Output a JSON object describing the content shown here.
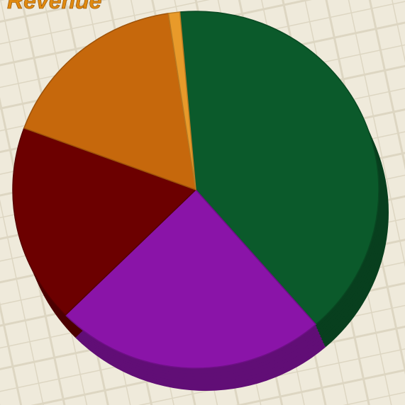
{
  "chart_data": {
    "type": "pie",
    "title": "Revenue",
    "categories": [
      null,
      null,
      null,
      null,
      null
    ],
    "values": [
      40,
      24,
      18,
      17,
      1
    ],
    "colors": [
      "#0b5a2b",
      "#8a14a8",
      "#6c0000",
      "#c6680c",
      "#e89a2a"
    ],
    "start_angle": -95
  }
}
